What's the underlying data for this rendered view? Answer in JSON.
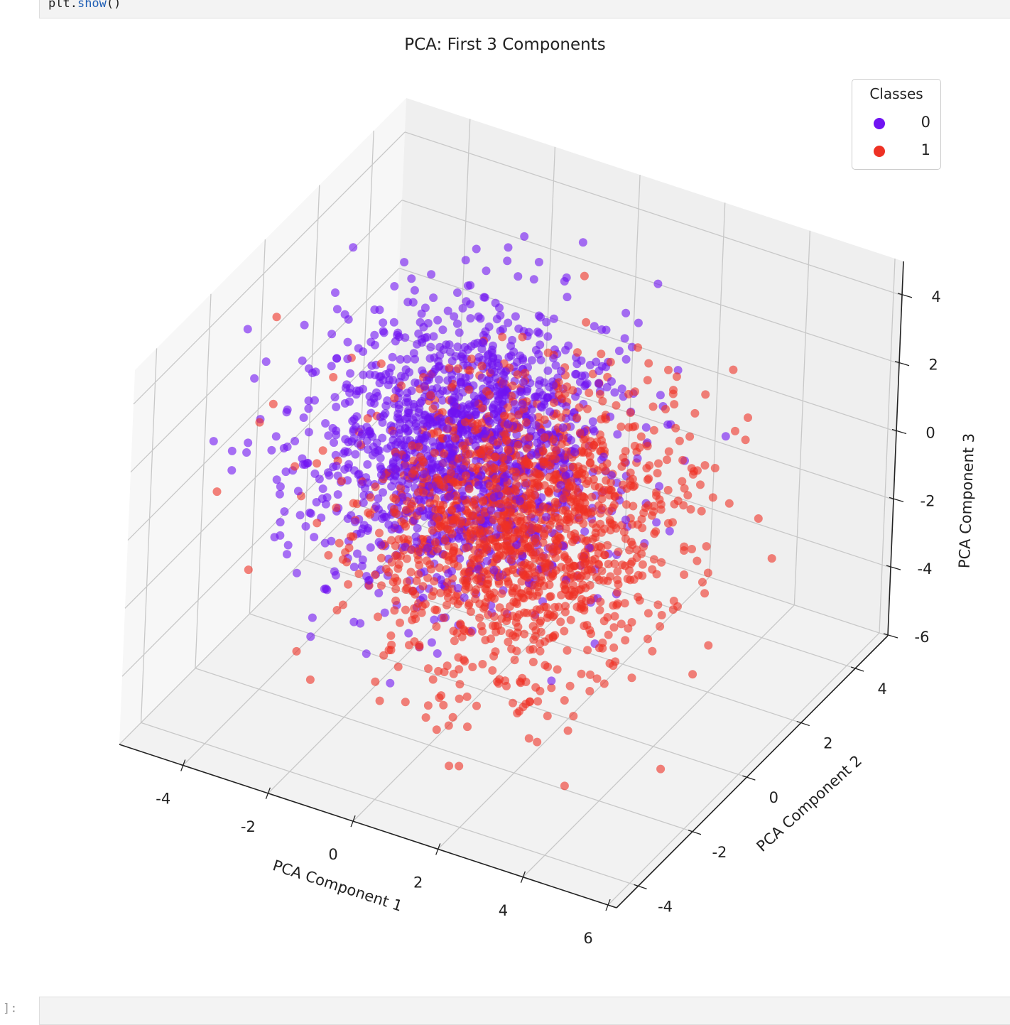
{
  "notebook": {
    "code_prev_last_line": {
      "obj": "plt.",
      "fn": "show",
      "args": "()"
    },
    "next_cell_prompt": "]:"
  },
  "chart_data": {
    "type": "scatter",
    "projection": "3d",
    "title": "PCA: First 3 Components",
    "xlabel": "PCA Component 1",
    "ylabel": "PCA Component 2",
    "zlabel": "PCA Component 3",
    "x_ticks": [
      "-4",
      "-2",
      "0",
      "2",
      "4",
      "6"
    ],
    "y_ticks": [
      "-4",
      "-2",
      "0",
      "2",
      "4"
    ],
    "z_ticks": [
      "-6",
      "-4",
      "-2",
      "0",
      "2",
      "4"
    ],
    "xlim": [
      -5.5,
      6.2
    ],
    "ylim": [
      -4.8,
      5.2
    ],
    "zlim": [
      -6,
      5
    ],
    "grid": true,
    "legend": {
      "title": "Classes",
      "position": "upper right",
      "entries": [
        {
          "label": "0",
          "color": "#7013f2"
        },
        {
          "label": "1",
          "color": "#ee3124"
        }
      ]
    },
    "series": [
      {
        "name": "0",
        "color": "#7013f2",
        "n_points": 1500,
        "center": [
          -1.0,
          0.6,
          0.3
        ],
        "spread": [
          1.6,
          1.5,
          1.6
        ]
      },
      {
        "name": "1",
        "color": "#ee3124",
        "n_points": 1500,
        "center": [
          1.1,
          -0.6,
          -0.3
        ],
        "spread": [
          1.6,
          1.5,
          1.6
        ]
      }
    ],
    "marker_alpha": 0.6,
    "marker_size_px": 12
  }
}
